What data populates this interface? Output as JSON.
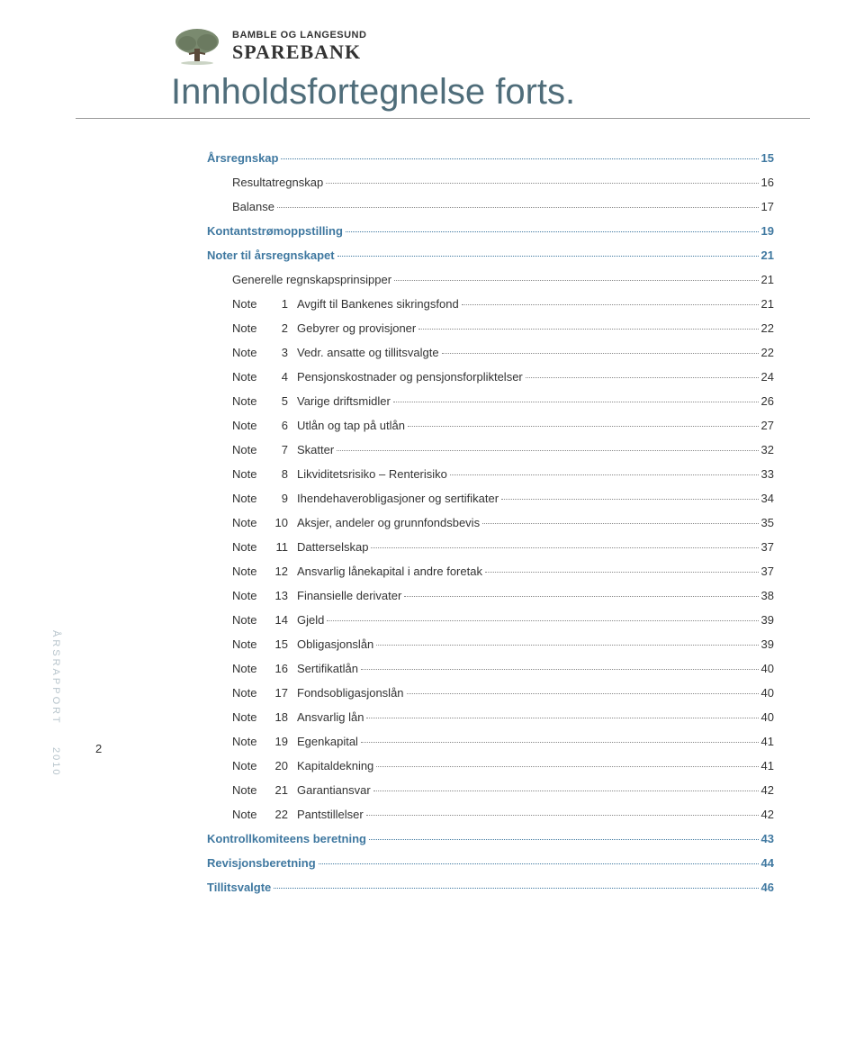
{
  "logo": {
    "sub": "BAMBLE OG LANGESUND",
    "main": "SPAREBANK"
  },
  "title": "Innholdsfortegnelse forts.",
  "side_label": "ÅRSRAPPORT",
  "side_year": "2010",
  "page_number": "2",
  "colors": {
    "heading": "#4f6d7a",
    "link": "#3f78a0",
    "text": "#333333",
    "side": "#b8c5cc",
    "rule": "#999999",
    "background": "#ffffff"
  },
  "typography": {
    "title_fontsize": 40,
    "body_fontsize": 13,
    "side_fontsize": 11
  },
  "toc": [
    {
      "level": 0,
      "label": "Årsregnskap",
      "page": "15"
    },
    {
      "level": 1,
      "label": "Resultatregnskap",
      "page": "16"
    },
    {
      "level": 1,
      "label": "Balanse",
      "page": "17"
    },
    {
      "level": 0,
      "label": "Kontantstrømoppstilling",
      "page": "19"
    },
    {
      "level": 0,
      "label": "Noter til årsregnskapet",
      "page": "21"
    },
    {
      "level": 1,
      "label": "Generelle regnskapsprinsipper",
      "page": "21"
    },
    {
      "level": 2,
      "note": "Note",
      "num": "1",
      "label": "Avgift til Bankenes sikringsfond",
      "page": "21"
    },
    {
      "level": 2,
      "note": "Note",
      "num": "2",
      "label": "Gebyrer og provisjoner",
      "page": "22"
    },
    {
      "level": 2,
      "note": "Note",
      "num": "3",
      "label": "Vedr. ansatte og tillitsvalgte",
      "page": "22"
    },
    {
      "level": 2,
      "note": "Note",
      "num": "4",
      "label": "Pensjonskostnader og pensjonsforpliktelser",
      "page": "24"
    },
    {
      "level": 2,
      "note": "Note",
      "num": "5",
      "label": "Varige driftsmidler",
      "page": "26"
    },
    {
      "level": 2,
      "note": "Note",
      "num": "6",
      "label": "Utlån og tap på utlån",
      "page": "27"
    },
    {
      "level": 2,
      "note": "Note",
      "num": "7",
      "label": "Skatter",
      "page": "32"
    },
    {
      "level": 2,
      "note": "Note",
      "num": "8",
      "label": "Likviditetsrisiko – Renterisiko",
      "page": "33"
    },
    {
      "level": 2,
      "note": "Note",
      "num": "9",
      "label": "Ihendehaverobligasjoner og sertifikater",
      "page": "34"
    },
    {
      "level": 2,
      "note": "Note",
      "num": "10",
      "label": "Aksjer, andeler og grunnfondsbevis",
      "page": "35"
    },
    {
      "level": 2,
      "note": "Note",
      "num": "11",
      "label": "Datterselskap",
      "page": "37"
    },
    {
      "level": 2,
      "note": "Note",
      "num": "12",
      "label": "Ansvarlig lånekapital i andre foretak",
      "page": "37"
    },
    {
      "level": 2,
      "note": "Note",
      "num": "13",
      "label": "Finansielle derivater",
      "page": "38"
    },
    {
      "level": 2,
      "note": "Note",
      "num": "14",
      "label": "Gjeld",
      "page": "39"
    },
    {
      "level": 2,
      "note": "Note",
      "num": "15",
      "label": "Obligasjonslån",
      "page": "39"
    },
    {
      "level": 2,
      "note": "Note",
      "num": "16",
      "label": "Sertifikatlån",
      "page": "40"
    },
    {
      "level": 2,
      "note": "Note",
      "num": "17",
      "label": "Fondsobligasjonslån",
      "page": "40"
    },
    {
      "level": 2,
      "note": "Note",
      "num": "18",
      "label": "Ansvarlig lån",
      "page": "40"
    },
    {
      "level": 2,
      "note": "Note",
      "num": "19",
      "label": "Egenkapital",
      "page": "41"
    },
    {
      "level": 2,
      "note": "Note",
      "num": "20",
      "label": "Kapitaldekning",
      "page": "41"
    },
    {
      "level": 2,
      "note": "Note",
      "num": "21",
      "label": "Garantiansvar",
      "page": "42"
    },
    {
      "level": 2,
      "note": "Note",
      "num": "22",
      "label": "Pantstillelser",
      "page": "42"
    },
    {
      "level": 0,
      "label": "Kontrollkomiteens beretning",
      "page": "43"
    },
    {
      "level": 0,
      "label": "Revisjonsberetning",
      "page": "44"
    },
    {
      "level": 0,
      "label": "Tillitsvalgte",
      "page": "46"
    }
  ]
}
